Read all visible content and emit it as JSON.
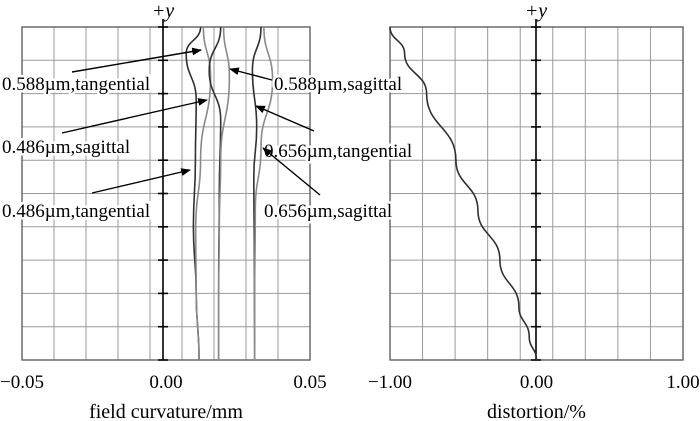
{
  "chart_data": [
    {
      "type": "line",
      "xlabel": "field curvature/mm",
      "ylabel": "+y",
      "xlim": [
        -0.05,
        0.05
      ],
      "ylim": [
        0,
        1
      ],
      "xticks": [
        "−0.05",
        "0.00",
        "0.05"
      ],
      "grid": true,
      "series": [
        {
          "name": "0.486µm,tangential",
          "color": "#303030",
          "points": [
            [
              0.012,
              1.0
            ],
            [
              0.007,
              0.92
            ],
            [
              0.0105,
              0.78
            ],
            [
              0.0102,
              0.6
            ],
            [
              0.0095,
              0.4
            ],
            [
              0.0105,
              0.2
            ],
            [
              0.0115,
              0.0
            ]
          ]
        },
        {
          "name": "0.486µm,sagittal",
          "color": "#8a8a8a",
          "points": [
            [
              0.013,
              1.0
            ],
            [
              0.0155,
              0.85
            ],
            [
              0.012,
              0.6
            ],
            [
              0.0103,
              0.4
            ],
            [
              0.0105,
              0.2
            ],
            [
              0.0115,
              0.0
            ]
          ]
        },
        {
          "name": "0.588µm,tangential",
          "color": "#303030",
          "points": [
            [
              0.019,
              1.0
            ],
            [
              0.015,
              0.87
            ],
            [
              0.019,
              0.72
            ],
            [
              0.0185,
              0.5
            ],
            [
              0.0183,
              0.25
            ],
            [
              0.0183,
              0.0
            ]
          ]
        },
        {
          "name": "0.588µm,sagittal",
          "color": "#8a8a8a",
          "points": [
            [
              0.02,
              1.0
            ],
            [
              0.022,
              0.85
            ],
            [
              0.019,
              0.6
            ],
            [
              0.0185,
              0.4
            ],
            [
              0.0183,
              0.2
            ],
            [
              0.0183,
              0.0
            ]
          ]
        },
        {
          "name": "0.656µm,tangential",
          "color": "#303030",
          "points": [
            [
              0.033,
              1.0
            ],
            [
              0.03,
              0.87
            ],
            [
              0.0315,
              0.7
            ],
            [
              0.0305,
              0.55
            ],
            [
              0.0307,
              0.3
            ],
            [
              0.0308,
              0.0
            ]
          ]
        },
        {
          "name": "0.656µm,sagittal",
          "color": "#8a8a8a",
          "points": [
            [
              0.034,
              1.0
            ],
            [
              0.037,
              0.84
            ],
            [
              0.033,
              0.64
            ],
            [
              0.031,
              0.45
            ],
            [
              0.0308,
              0.2
            ],
            [
              0.0308,
              0.0
            ]
          ]
        }
      ],
      "annotations": [
        "0.588µm,tangential",
        "0.588µm,sagittal",
        "0.486µm,sagittal",
        "0.656µm,tangential",
        "0.486µm,tangential",
        "0.656µm,sagittal"
      ]
    },
    {
      "type": "line",
      "xlabel": "distortion/%",
      "ylabel": "+y",
      "xlim": [
        -1.0,
        1.0
      ],
      "ylim": [
        0,
        1
      ],
      "xticks": [
        "−1.00",
        "0.00",
        "1.00"
      ],
      "grid": true,
      "series": [
        {
          "color": "#303030",
          "points": [
            [
              -1.0,
              1.0
            ],
            [
              -0.9,
              0.92
            ],
            [
              -0.75,
              0.8
            ],
            [
              -0.55,
              0.6
            ],
            [
              -0.4,
              0.45
            ],
            [
              -0.25,
              0.3
            ],
            [
              -0.12,
              0.16
            ],
            [
              -0.05,
              0.07
            ],
            [
              0.0,
              0.0
            ]
          ]
        }
      ]
    }
  ]
}
